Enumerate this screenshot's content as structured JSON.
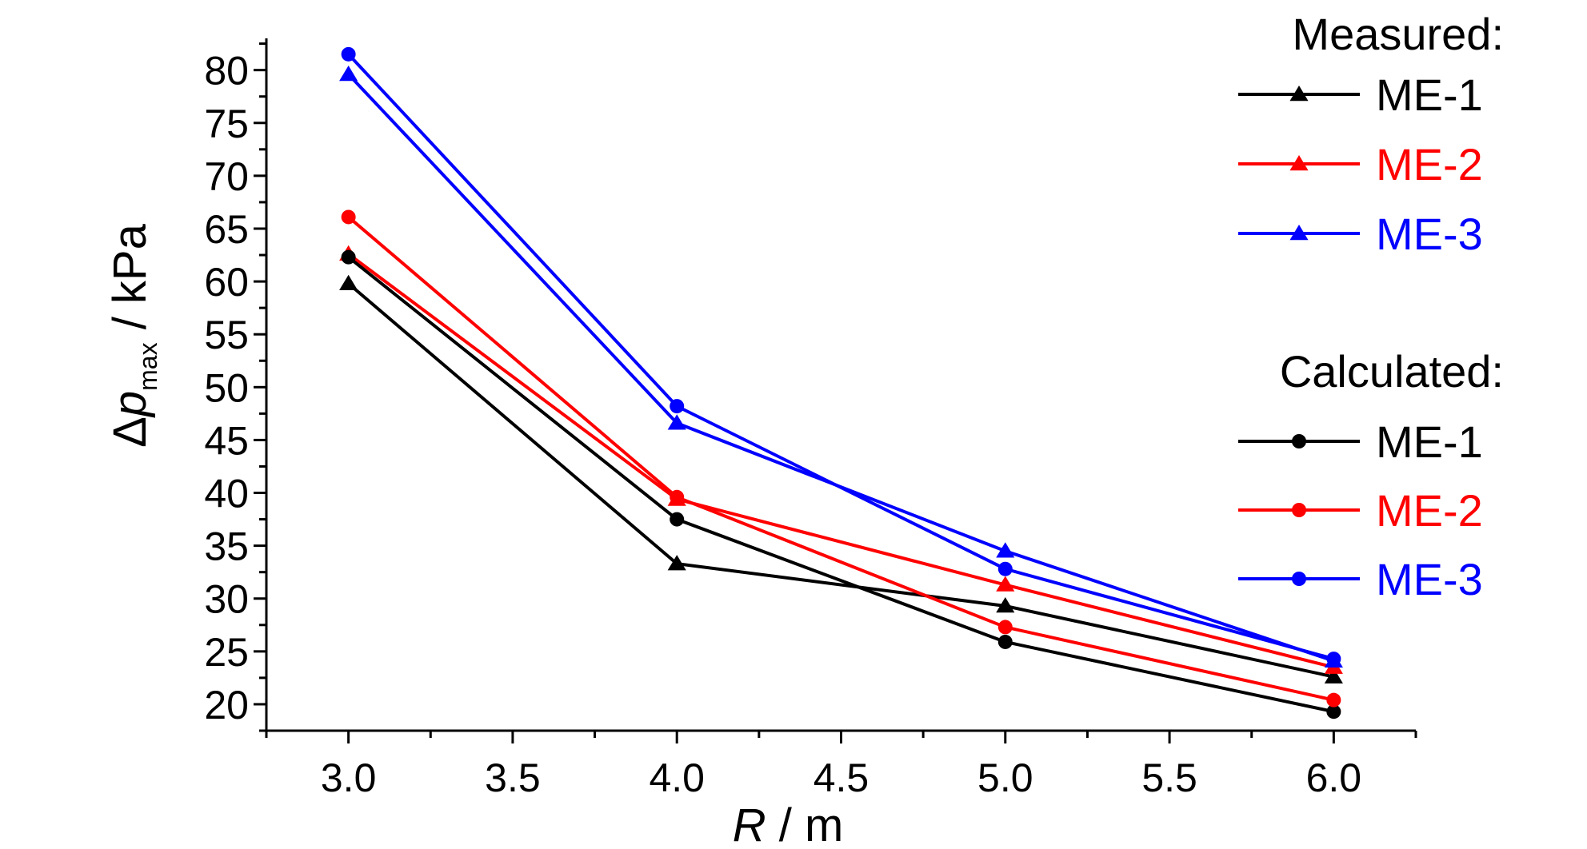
{
  "chart_data": {
    "type": "line",
    "x": [
      3.0,
      4.0,
      5.0,
      6.0
    ],
    "xlim": [
      2.75,
      6.25
    ],
    "ylim": [
      17.5,
      83
    ],
    "x_ticks": [
      "3.0",
      "3.5",
      "4.0",
      "4.5",
      "5.0",
      "5.5",
      "6.0"
    ],
    "y_ticks": [
      "20",
      "25",
      "30",
      "35",
      "40",
      "45",
      "50",
      "55",
      "60",
      "65",
      "70",
      "75",
      "80"
    ],
    "xlabel": {
      "italic": "R",
      "rest": " / m"
    },
    "ylabel": {
      "delta": "Δ",
      "italic": "p",
      "sub": "max",
      "rest": " / kPa"
    },
    "grid": false,
    "legend_position": "right",
    "legend_groups": [
      {
        "title": "Measured:",
        "marker": "triangle"
      },
      {
        "title": "Calculated:",
        "marker": "circle"
      }
    ],
    "series": [
      {
        "name": "ME-1",
        "group": "Measured:",
        "marker": "triangle",
        "color": "#000000",
        "values": [
          59.8,
          33.3,
          29.3,
          22.6
        ]
      },
      {
        "name": "ME-2",
        "group": "Measured:",
        "marker": "triangle",
        "color": "#ff0000",
        "values": [
          62.6,
          39.4,
          31.3,
          23.5
        ]
      },
      {
        "name": "ME-3",
        "group": "Measured:",
        "marker": "triangle",
        "color": "#0000ff",
        "values": [
          79.6,
          46.6,
          34.5,
          24.1
        ]
      },
      {
        "name": "ME-1",
        "group": "Calculated:",
        "marker": "circle",
        "color": "#000000",
        "values": [
          62.3,
          37.5,
          25.9,
          19.3
        ]
      },
      {
        "name": "ME-2",
        "group": "Calculated:",
        "marker": "circle",
        "color": "#ff0000",
        "values": [
          66.1,
          39.6,
          27.3,
          20.4
        ]
      },
      {
        "name": "ME-3",
        "group": "Calculated:",
        "marker": "circle",
        "color": "#0000ff",
        "values": [
          81.5,
          48.2,
          32.8,
          24.3
        ]
      }
    ]
  }
}
